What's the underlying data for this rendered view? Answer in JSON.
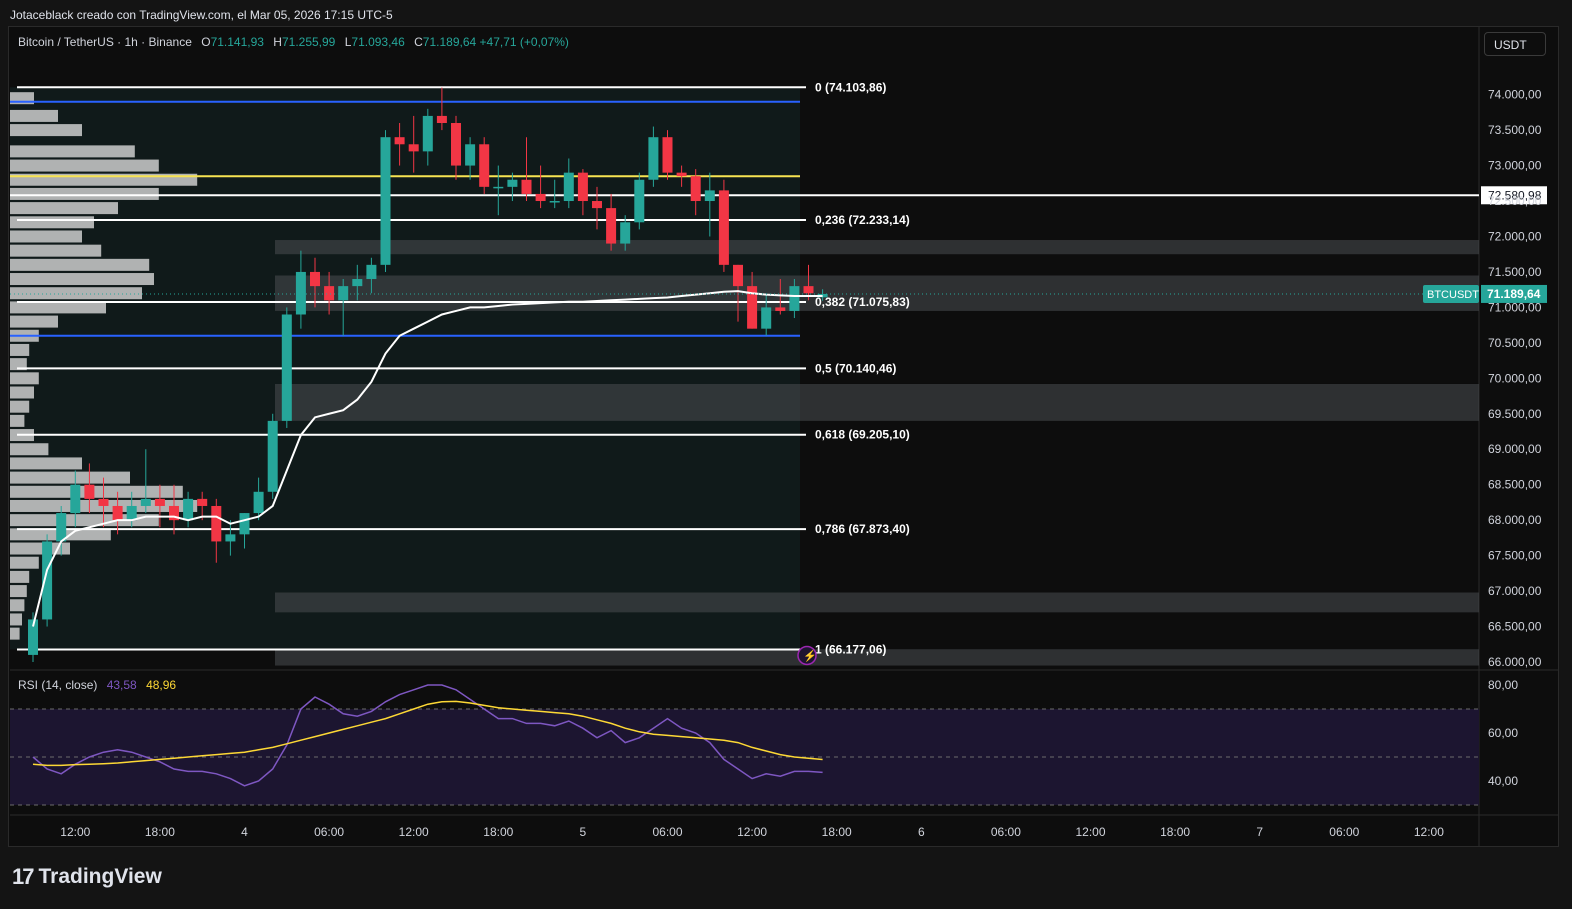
{
  "header": {
    "credit": "Jotaceblack creado con TradingView.com, el Mar 05, 2026 17:15 UTC-5"
  },
  "legend": {
    "symbol": "Bitcoin / TetherUS · 1h · Binance",
    "o_label": "O",
    "o": "71.141,93",
    "h_label": "H",
    "h": "71.255,99",
    "l_label": "L",
    "l": "71.093,46",
    "c_label": "C",
    "c": "71.189,64",
    "change": "+47,71 (+0,07%)"
  },
  "currency_button": "USDT",
  "rsi_legend": {
    "name": "RSI (14, close)",
    "rsi": "43,58",
    "ma": "48,96"
  },
  "brand": {
    "logo": "17",
    "name": "TradingView"
  },
  "colors": {
    "up": "#26a69a",
    "down": "#f23645",
    "fib": "#ffffff",
    "blue": "#2962ff",
    "yellow": "#f7e452",
    "rsi": "#7e57c2",
    "rsi_ma": "#fdd835",
    "vwap": "#ffffff"
  },
  "chart_data": [
    {
      "type": "candlestick",
      "symbol": "BTCUSDT",
      "timeframe": "1h",
      "ylim": [
        65900,
        74500
      ],
      "price_ticks": [
        "66.000,00",
        "66.500,00",
        "67.000,00",
        "67.500,00",
        "68.000,00",
        "68.500,00",
        "69.000,00",
        "69.500,00",
        "70.000,00",
        "70.500,00",
        "71.000,00",
        "71.500,00",
        "72.000,00",
        "72.500,00",
        "73.000,00",
        "73.500,00",
        "74.000,00"
      ],
      "time_labels": [
        {
          "label": "12:00",
          "index": 3
        },
        {
          "label": "18:00",
          "index": 9
        },
        {
          "label": "4",
          "index": 15
        },
        {
          "label": "06:00",
          "index": 21
        },
        {
          "label": "12:00",
          "index": 27
        },
        {
          "label": "18:00",
          "index": 33
        },
        {
          "label": "5",
          "index": 39
        },
        {
          "label": "06:00",
          "index": 45
        },
        {
          "label": "12:00",
          "index": 51
        },
        {
          "label": "18:00",
          "index": 57
        },
        {
          "label": "6",
          "index": 63
        },
        {
          "label": "06:00",
          "index": 69
        },
        {
          "label": "12:00",
          "index": 75
        },
        {
          "label": "18:00",
          "index": 81
        },
        {
          "label": "7",
          "index": 87
        },
        {
          "label": "06:00",
          "index": 93
        },
        {
          "label": "12:00",
          "index": 99
        }
      ],
      "candles": [
        {
          "o": 66100,
          "h": 66700,
          "l": 66000,
          "c": 66600
        },
        {
          "o": 66600,
          "h": 67800,
          "l": 66500,
          "c": 67700
        },
        {
          "o": 67700,
          "h": 68200,
          "l": 67500,
          "c": 68100
        },
        {
          "o": 68100,
          "h": 68700,
          "l": 67900,
          "c": 68500
        },
        {
          "o": 68500,
          "h": 68800,
          "l": 68100,
          "c": 68300
        },
        {
          "o": 68300,
          "h": 68600,
          "l": 67900,
          "c": 68200
        },
        {
          "o": 68200,
          "h": 68400,
          "l": 67800,
          "c": 68000
        },
        {
          "o": 68000,
          "h": 68400,
          "l": 67900,
          "c": 68200
        },
        {
          "o": 68200,
          "h": 69000,
          "l": 68100,
          "c": 68300
        },
        {
          "o": 68300,
          "h": 68500,
          "l": 67900,
          "c": 68200
        },
        {
          "o": 68200,
          "h": 68500,
          "l": 67800,
          "c": 68000
        },
        {
          "o": 68000,
          "h": 68400,
          "l": 67900,
          "c": 68300
        },
        {
          "o": 68300,
          "h": 68400,
          "l": 68000,
          "c": 68200
        },
        {
          "o": 68200,
          "h": 68300,
          "l": 67400,
          "c": 67700
        },
        {
          "o": 67700,
          "h": 68000,
          "l": 67500,
          "c": 67800
        },
        {
          "o": 67800,
          "h": 68100,
          "l": 67600,
          "c": 68100
        },
        {
          "o": 68100,
          "h": 68600,
          "l": 68000,
          "c": 68400
        },
        {
          "o": 68400,
          "h": 69500,
          "l": 68300,
          "c": 69400
        },
        {
          "o": 69400,
          "h": 71000,
          "l": 69300,
          "c": 70900
        },
        {
          "o": 70900,
          "h": 71800,
          "l": 70700,
          "c": 71500
        },
        {
          "o": 71500,
          "h": 71700,
          "l": 71000,
          "c": 71300
        },
        {
          "o": 71300,
          "h": 71500,
          "l": 70900,
          "c": 71100
        },
        {
          "o": 71100,
          "h": 71400,
          "l": 70600,
          "c": 71300
        },
        {
          "o": 71300,
          "h": 71600,
          "l": 71100,
          "c": 71400
        },
        {
          "o": 71400,
          "h": 71700,
          "l": 71200,
          "c": 71600
        },
        {
          "o": 71600,
          "h": 73500,
          "l": 71500,
          "c": 73400
        },
        {
          "o": 73400,
          "h": 73600,
          "l": 73000,
          "c": 73300
        },
        {
          "o": 73300,
          "h": 73700,
          "l": 72900,
          "c": 73200
        },
        {
          "o": 73200,
          "h": 73800,
          "l": 73000,
          "c": 73700
        },
        {
          "o": 73700,
          "h": 74100,
          "l": 73500,
          "c": 73600
        },
        {
          "o": 73600,
          "h": 73700,
          "l": 72800,
          "c": 73000
        },
        {
          "o": 73000,
          "h": 73400,
          "l": 72800,
          "c": 73300
        },
        {
          "o": 73300,
          "h": 73400,
          "l": 72600,
          "c": 72700
        },
        {
          "o": 72700,
          "h": 73000,
          "l": 72300,
          "c": 72700
        },
        {
          "o": 72700,
          "h": 72900,
          "l": 72500,
          "c": 72800
        },
        {
          "o": 72800,
          "h": 73400,
          "l": 72500,
          "c": 72600
        },
        {
          "o": 72600,
          "h": 73000,
          "l": 72400,
          "c": 72500
        },
        {
          "o": 72500,
          "h": 72800,
          "l": 72400,
          "c": 72500
        },
        {
          "o": 72500,
          "h": 73100,
          "l": 72400,
          "c": 72900
        },
        {
          "o": 72900,
          "h": 72950,
          "l": 72300,
          "c": 72500
        },
        {
          "o": 72500,
          "h": 72700,
          "l": 72100,
          "c": 72400
        },
        {
          "o": 72400,
          "h": 72600,
          "l": 71800,
          "c": 71900
        },
        {
          "o": 71900,
          "h": 72300,
          "l": 71800,
          "c": 72200
        },
        {
          "o": 72200,
          "h": 72900,
          "l": 72100,
          "c": 72800
        },
        {
          "o": 72800,
          "h": 73550,
          "l": 72700,
          "c": 73400
        },
        {
          "o": 73400,
          "h": 73500,
          "l": 72800,
          "c": 72900
        },
        {
          "o": 72900,
          "h": 73000,
          "l": 72700,
          "c": 72850
        },
        {
          "o": 72850,
          "h": 72950,
          "l": 72300,
          "c": 72500
        },
        {
          "o": 72500,
          "h": 72900,
          "l": 72000,
          "c": 72650
        },
        {
          "o": 72650,
          "h": 72800,
          "l": 71500,
          "c": 71600
        },
        {
          "o": 71600,
          "h": 71600,
          "l": 70800,
          "c": 71300
        },
        {
          "o": 71300,
          "h": 71500,
          "l": 70700,
          "c": 70700
        },
        {
          "o": 70700,
          "h": 71200,
          "l": 70600,
          "c": 71000
        },
        {
          "o": 71000,
          "h": 71400,
          "l": 70900,
          "c": 70950
        },
        {
          "o": 70950,
          "h": 71400,
          "l": 70850,
          "c": 71300
        },
        {
          "o": 71300,
          "h": 71600,
          "l": 71100,
          "c": 71200
        },
        {
          "o": 71141.93,
          "h": 71255.99,
          "l": 71093.46,
          "c": 71189.64
        }
      ],
      "vwap": [
        66500,
        67300,
        67700,
        67850,
        67900,
        67950,
        68000,
        68000,
        68050,
        68050,
        68050,
        68000,
        68050,
        68050,
        67950,
        68000,
        68050,
        68200,
        68700,
        69200,
        69450,
        69500,
        69550,
        69700,
        69950,
        70350,
        70600,
        70700,
        70800,
        70900,
        70950,
        71000,
        71000,
        71020,
        71040,
        71050,
        71060,
        71070,
        71080,
        71080,
        71090,
        71100,
        71110,
        71120,
        71130,
        71140,
        71160,
        71180,
        71200,
        71220,
        71230,
        71200,
        71180,
        71170,
        71160,
        71160,
        71160
      ],
      "fib_levels": [
        {
          "ratio": "0",
          "price": 74103.86,
          "label": "0 (74.103,86)"
        },
        {
          "ratio": "0.236",
          "price": 72233.14,
          "label": "0,236 (72.233,14)"
        },
        {
          "ratio": "0.382",
          "price": 71075.83,
          "label": "0,382 (71.075,83)"
        },
        {
          "ratio": "0.5",
          "price": 70140.46,
          "label": "0,5 (70.140,46)"
        },
        {
          "ratio": "0.618",
          "price": 69205.1,
          "label": "0,618 (69.205,10)"
        },
        {
          "ratio": "0.786",
          "price": 67873.4,
          "label": "0,786 (67.873,40)"
        },
        {
          "ratio": "1",
          "price": 66177.06,
          "label": "1 (66.177,06)"
        }
      ],
      "horizontal_lines": [
        {
          "price": 73900,
          "color": "blue"
        },
        {
          "price": 70600,
          "color": "blue"
        },
        {
          "price": 72850,
          "color": "yellow"
        },
        {
          "price": 72580.98,
          "color": "white",
          "label": "72.580,98"
        }
      ],
      "zones": [
        {
          "from": 71750,
          "to": 71950
        },
        {
          "from": 70950,
          "to": 71450
        },
        {
          "from": 69400,
          "to": 69920
        },
        {
          "from": 66700,
          "to": 66980
        },
        {
          "from": 65950,
          "to": 66180
        }
      ],
      "current_price": {
        "symbol": "BTCUSDT",
        "value": "71.189,64",
        "price": 71189.64
      },
      "volume_profile": [
        {
          "price": 73950,
          "size": 0.1
        },
        {
          "price": 73700,
          "size": 0.2
        },
        {
          "price": 73500,
          "size": 0.3
        },
        {
          "price": 73200,
          "size": 0.52
        },
        {
          "price": 73000,
          "size": 0.62
        },
        {
          "price": 72800,
          "size": 0.78
        },
        {
          "price": 72600,
          "size": 0.62
        },
        {
          "price": 72400,
          "size": 0.45
        },
        {
          "price": 72200,
          "size": 0.35
        },
        {
          "price": 72000,
          "size": 0.3
        },
        {
          "price": 71800,
          "size": 0.38
        },
        {
          "price": 71600,
          "size": 0.58
        },
        {
          "price": 71400,
          "size": 0.6
        },
        {
          "price": 71200,
          "size": 0.55
        },
        {
          "price": 71000,
          "size": 0.4
        },
        {
          "price": 70800,
          "size": 0.2
        },
        {
          "price": 70600,
          "size": 0.12
        },
        {
          "price": 70400,
          "size": 0.08
        },
        {
          "price": 70200,
          "size": 0.07
        },
        {
          "price": 70000,
          "size": 0.12
        },
        {
          "price": 69800,
          "size": 0.1
        },
        {
          "price": 69600,
          "size": 0.08
        },
        {
          "price": 69400,
          "size": 0.06
        },
        {
          "price": 69200,
          "size": 0.1
        },
        {
          "price": 69000,
          "size": 0.16
        },
        {
          "price": 68800,
          "size": 0.3
        },
        {
          "price": 68600,
          "size": 0.5
        },
        {
          "price": 68400,
          "size": 0.72
        },
        {
          "price": 68200,
          "size": 0.78
        },
        {
          "price": 68000,
          "size": 0.62
        },
        {
          "price": 67800,
          "size": 0.42
        },
        {
          "price": 67600,
          "size": 0.25
        },
        {
          "price": 67400,
          "size": 0.12
        },
        {
          "price": 67200,
          "size": 0.08
        },
        {
          "price": 67000,
          "size": 0.07
        },
        {
          "price": 66800,
          "size": 0.06
        },
        {
          "price": 66600,
          "size": 0.05
        },
        {
          "price": 66400,
          "size": 0.04
        }
      ]
    },
    {
      "type": "line",
      "name": "RSI (14, close)",
      "ylim": [
        30,
        85
      ],
      "y_ticks": [
        "40,00",
        "60,00",
        "80,00"
      ],
      "bands": [
        30,
        50,
        70
      ],
      "series": [
        {
          "name": "RSI",
          "values": [
            50,
            45,
            43,
            47,
            50,
            52,
            53,
            52,
            50,
            48,
            45,
            44,
            44,
            43,
            41,
            38,
            40,
            45,
            55,
            70,
            75,
            72,
            68,
            67,
            69,
            73,
            76,
            78,
            80,
            80,
            78,
            74,
            70,
            66,
            66,
            64,
            64,
            63,
            65,
            62,
            58,
            61,
            56,
            58,
            62,
            66,
            62,
            60,
            56,
            49,
            45,
            41,
            43,
            42,
            44,
            44,
            43.58
          ]
        },
        {
          "name": "RSI MA",
          "values": [
            47,
            46.5,
            46.5,
            46.8,
            47,
            47.2,
            47.5,
            48,
            48.5,
            49,
            49.5,
            50,
            50.5,
            51,
            51.5,
            52,
            53,
            54,
            55.5,
            57,
            58.5,
            60,
            61.5,
            63,
            64.5,
            66,
            68,
            70,
            72,
            73,
            73.2,
            72.5,
            71.5,
            70.5,
            70,
            69.5,
            69,
            68.5,
            68,
            67,
            65.5,
            64,
            62,
            60.5,
            59.5,
            59,
            58.5,
            58,
            57.5,
            57,
            56,
            54,
            52.5,
            51,
            50,
            49.5,
            48.96
          ]
        }
      ]
    }
  ]
}
